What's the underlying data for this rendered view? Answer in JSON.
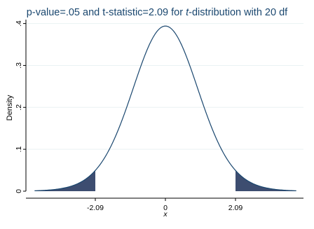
{
  "chart_data": {
    "type": "area",
    "title_part1": "p-value=.05 and t-statistic=2.09 for ",
    "title_italic": "t",
    "title_part2": "-distribution with 20 df",
    "xlabel": "x",
    "ylabel": "Density",
    "df": 20,
    "critical_value": 2.09,
    "xlim": [
      -3.9,
      3.9
    ],
    "ylim": [
      0,
      0.4
    ],
    "yticks": [
      {
        "value": 0,
        "label": "0"
      },
      {
        "value": 0.1,
        "label": ".1"
      },
      {
        "value": 0.2,
        "label": ".2"
      },
      {
        "value": 0.3,
        "label": ".3"
      },
      {
        "value": 0.4,
        "label": ".4"
      }
    ],
    "xticks": [
      {
        "value": -2.09,
        "label": "-2.09"
      },
      {
        "value": 0,
        "label": "0"
      },
      {
        "value": 2.09,
        "label": "2.09"
      }
    ],
    "shaded_regions": [
      {
        "from": -3.9,
        "to": -2.09
      },
      {
        "from": 2.09,
        "to": 3.9
      }
    ],
    "grid": true,
    "colors": {
      "title": "#1a476f",
      "curve": "#1a476f",
      "fill": "#3d4d70",
      "grid": "#eaf2f3",
      "axis": "#000000",
      "text": "#000000"
    }
  }
}
